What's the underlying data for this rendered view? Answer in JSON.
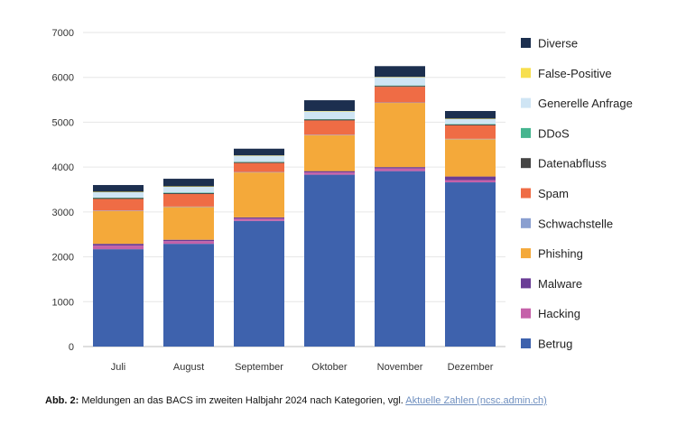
{
  "chart_data": {
    "type": "bar",
    "stacked": true,
    "categories": [
      "Juli",
      "August",
      "September",
      "Oktober",
      "November",
      "Dezember"
    ],
    "ylim": [
      0,
      7000
    ],
    "yticks": [
      0,
      1000,
      2000,
      3000,
      4000,
      5000,
      6000,
      7000
    ],
    "grid": true,
    "legend_position": "right",
    "series": [
      {
        "name": "Betrug",
        "color": "#3e62ad",
        "values": [
          2170,
          2290,
          2800,
          3830,
          3910,
          3660
        ]
      },
      {
        "name": "Hacking",
        "color": "#c561a9",
        "values": [
          80,
          60,
          50,
          50,
          60,
          50
        ]
      },
      {
        "name": "Malware",
        "color": "#6a3d96",
        "values": [
          40,
          30,
          30,
          30,
          30,
          80
        ]
      },
      {
        "name": "Phishing",
        "color": "#f4a93a",
        "values": [
          730,
          730,
          1000,
          800,
          1430,
          830
        ]
      },
      {
        "name": "Schwachstelle",
        "color": "#8a9fd0",
        "values": [
          10,
          10,
          10,
          10,
          10,
          10
        ]
      },
      {
        "name": "Spam",
        "color": "#ef6c45",
        "values": [
          260,
          280,
          200,
          320,
          350,
          300
        ]
      },
      {
        "name": "Datenabfluss",
        "color": "#444444",
        "values": [
          20,
          20,
          20,
          20,
          20,
          20
        ]
      },
      {
        "name": "DDoS",
        "color": "#45b58f",
        "values": [
          10,
          10,
          10,
          10,
          10,
          10
        ]
      },
      {
        "name": "Generelle Anfrage",
        "color": "#cfe5f4",
        "values": [
          120,
          130,
          130,
          170,
          180,
          110
        ]
      },
      {
        "name": "False-Positive",
        "color": "#f7df4e",
        "values": [
          10,
          10,
          10,
          10,
          10,
          10
        ]
      },
      {
        "name": "Diverse",
        "color": "#1c2f4f",
        "values": [
          150,
          170,
          150,
          240,
          240,
          170
        ]
      }
    ],
    "legend_order": [
      "Diverse",
      "False-Positive",
      "Generelle Anfrage",
      "DDoS",
      "Datenabfluss",
      "Spam",
      "Schwachstelle",
      "Phishing",
      "Malware",
      "Hacking",
      "Betrug"
    ]
  },
  "caption": {
    "label": "Abb. 2:",
    "text": " Meldungen an das BACS im zweiten Halbjahr 2024 nach Kategorien, vgl. ",
    "link_text": "Aktuelle Zahlen (ncsc.admin.ch)"
  }
}
